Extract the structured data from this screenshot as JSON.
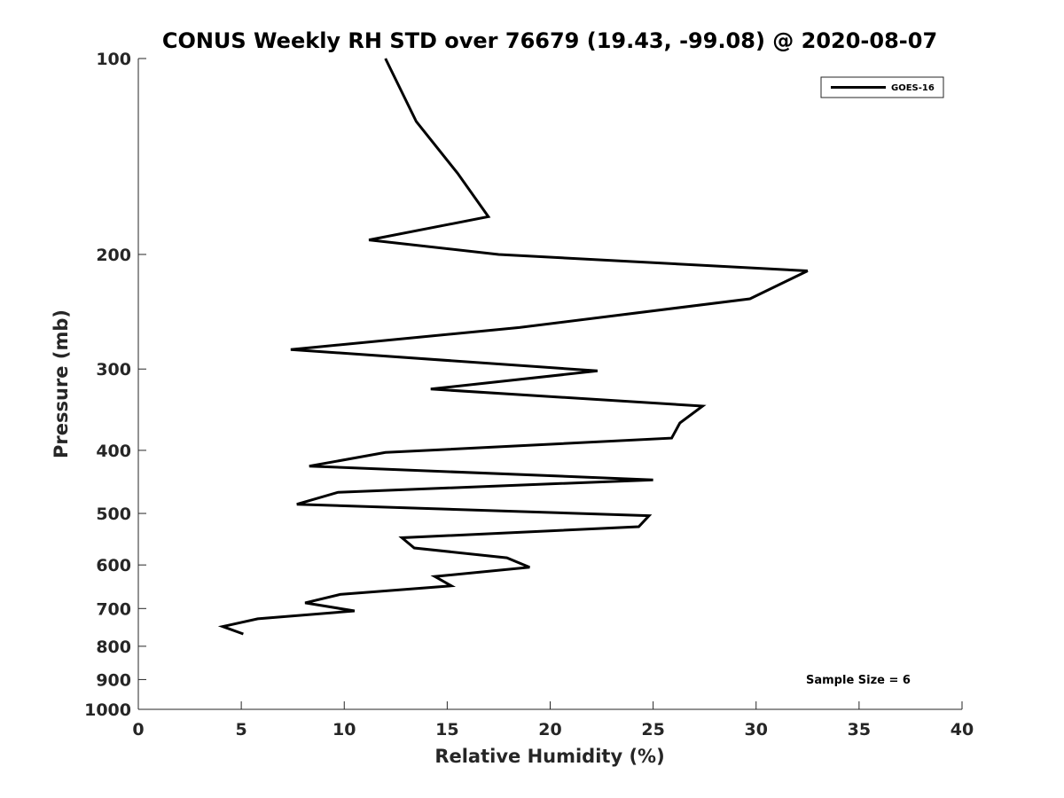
{
  "chart_data": {
    "type": "line",
    "title": "CONUS Weekly RH STD over 76679 (19.43, -99.08) @ 2020-08-07",
    "xlabel": "Relative Humidity (%)",
    "ylabel": "Pressure (mb)",
    "xlim": [
      0,
      40
    ],
    "ylim": [
      1000,
      100
    ],
    "y_scale": "log",
    "y_reversed": true,
    "xticks": [
      "0",
      "5",
      "10",
      "15",
      "20",
      "25",
      "30",
      "35",
      "40"
    ],
    "xtick_values": [
      0,
      5,
      10,
      15,
      20,
      25,
      30,
      35,
      40
    ],
    "yticks": [
      "100",
      "200",
      "300",
      "400",
      "500",
      "600",
      "700",
      "800",
      "900",
      "1000"
    ],
    "ytick_values": [
      100,
      200,
      300,
      400,
      500,
      600,
      700,
      800,
      900,
      1000
    ],
    "grid": false,
    "legend_position": "top-right",
    "series": [
      {
        "name": "GOES-16",
        "color": "#000000",
        "points": [
          [
            12.0,
            100
          ],
          [
            13.5,
            125
          ],
          [
            15.5,
            150
          ],
          [
            17.0,
            175
          ],
          [
            11.2,
            190
          ],
          [
            17.5,
            200
          ],
          [
            32.5,
            212
          ],
          [
            29.7,
            234
          ],
          [
            18.5,
            259
          ],
          [
            7.4,
            280
          ],
          [
            22.3,
            302
          ],
          [
            14.2,
            322
          ],
          [
            27.4,
            342
          ],
          [
            26.3,
            363
          ],
          [
            25.9,
            383
          ],
          [
            12.0,
            403
          ],
          [
            8.3,
            423
          ],
          [
            25.0,
            444
          ],
          [
            9.7,
            464
          ],
          [
            7.7,
            484
          ],
          [
            24.8,
            504
          ],
          [
            24.3,
            524
          ],
          [
            12.8,
            545
          ],
          [
            13.4,
            565
          ],
          [
            17.9,
            585
          ],
          [
            19.0,
            605
          ],
          [
            14.4,
            625
          ],
          [
            15.2,
            646
          ],
          [
            9.8,
            666
          ],
          [
            8.1,
            686
          ],
          [
            10.5,
            706
          ],
          [
            5.8,
            726
          ],
          [
            4.1,
            746
          ],
          [
            5.1,
            766
          ]
        ]
      }
    ],
    "annotations": [
      "Sample Size = 6"
    ]
  }
}
